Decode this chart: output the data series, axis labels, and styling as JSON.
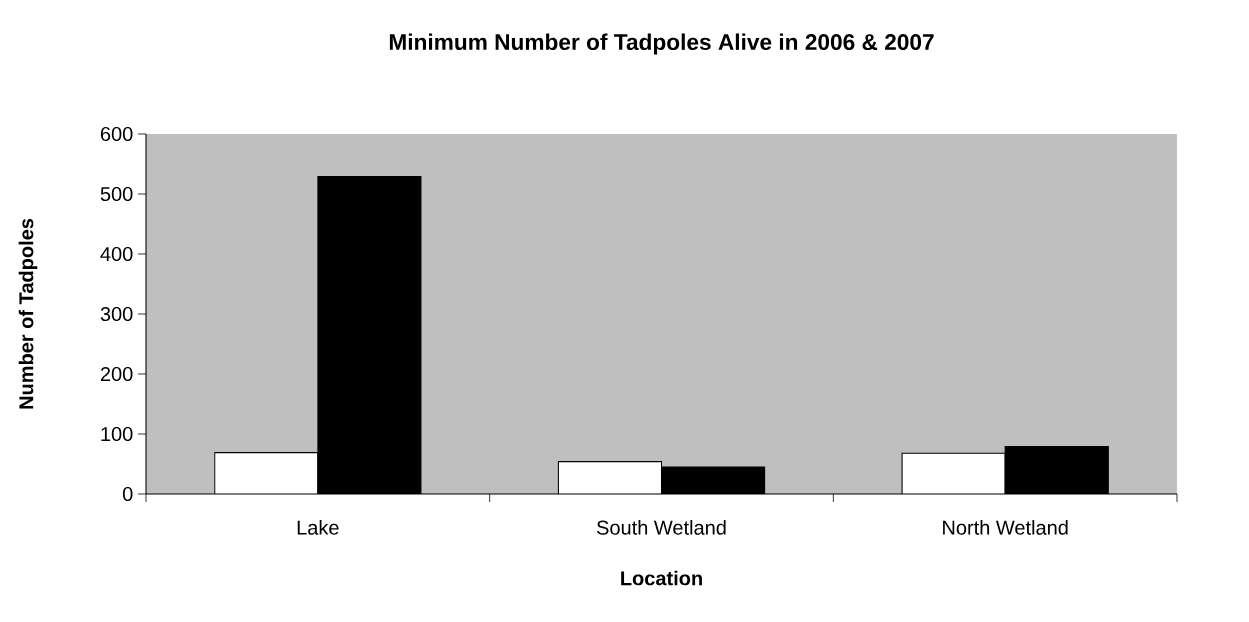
{
  "chart_data": {
    "type": "bar",
    "title": "Minimum Number of Tadpoles Alive in 2006 & 2007",
    "xlabel": "Location",
    "ylabel": "Number of Tadpoles",
    "categories": [
      "Lake",
      "South Wetland",
      "North Wetland"
    ],
    "series": [
      {
        "color": "#ffffff",
        "values": [
          69,
          54,
          68
        ]
      },
      {
        "color": "#000000",
        "values": [
          529,
          45,
          79
        ]
      }
    ],
    "ylim": [
      0,
      600
    ],
    "yticks": [
      0,
      100,
      200,
      300,
      400,
      500,
      600
    ],
    "grid": false
  }
}
